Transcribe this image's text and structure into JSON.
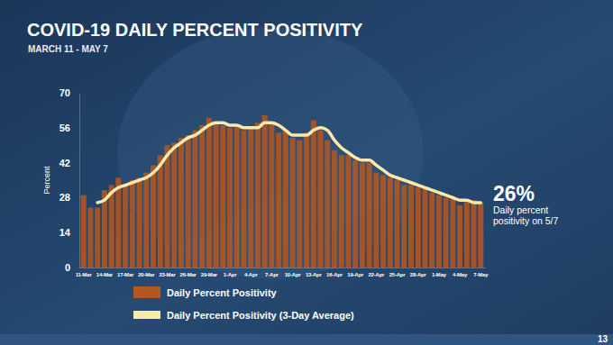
{
  "chart_data": {
    "type": "bar",
    "title": "COVID-19 DAILY PERCENT POSITIVITY",
    "subtitle": "MARCH 11 - MAY 7",
    "y_label": "Percent",
    "categories": [
      "11-Mar",
      null,
      null,
      "14-Mar",
      null,
      null,
      "17-Mar",
      null,
      null,
      "20-Mar",
      null,
      null,
      "23-Mar",
      null,
      null,
      "26-Mar",
      null,
      null,
      "29-Mar",
      null,
      null,
      "1-Apr",
      null,
      null,
      "4-Apr",
      null,
      null,
      "7-Apr",
      null,
      null,
      "10-Apr",
      null,
      null,
      "13-Apr",
      null,
      null,
      "16-Apr",
      null,
      null,
      "19-Apr",
      null,
      null,
      "22-Apr",
      null,
      null,
      "25-Apr",
      null,
      null,
      "28-Apr",
      null,
      null,
      "1-May",
      null,
      null,
      "4-May",
      null,
      null,
      "7-May"
    ],
    "series": [
      {
        "name": "Daily Percent Positivity",
        "type": "bar",
        "color": "#b4561f",
        "values": [
          29,
          24,
          24,
          31,
          33,
          36,
          33,
          35,
          36,
          38,
          41,
          45,
          49,
          50,
          52,
          53,
          55,
          57,
          60,
          58,
          57,
          56,
          57,
          55,
          56,
          58,
          61,
          58,
          54,
          55,
          52,
          51,
          54,
          59,
          55,
          51,
          47,
          45,
          45,
          43,
          42,
          42,
          38,
          37,
          36,
          35,
          33,
          33,
          32,
          32,
          30,
          29,
          28,
          28,
          25,
          27,
          27,
          26
        ]
      },
      {
        "name": "Daily Percent Positivity (3-Day Average)",
        "type": "line",
        "color": "#fbe9a8",
        "values": [
          null,
          null,
          26,
          27,
          30,
          32,
          33,
          34,
          35,
          36,
          38,
          41,
          45,
          48,
          50,
          52,
          53,
          55,
          57,
          58,
          58,
          57,
          57,
          56,
          56,
          56,
          58,
          58,
          57,
          55,
          53,
          53,
          53,
          55,
          56,
          55,
          51,
          48,
          46,
          44,
          43,
          43,
          41,
          39,
          37,
          36,
          35,
          34,
          33,
          32,
          31,
          30,
          29,
          28,
          27,
          27,
          26,
          26
        ]
      }
    ],
    "ylim": [
      0,
      70
    ],
    "yticks": [
      0,
      14,
      28,
      42,
      56,
      70
    ],
    "grid": false,
    "legend": "bottom",
    "annotation": {
      "value": 26,
      "label": "26%",
      "lines": [
        "Daily percent",
        "positivity on 5/7"
      ]
    },
    "logo": "13"
  }
}
